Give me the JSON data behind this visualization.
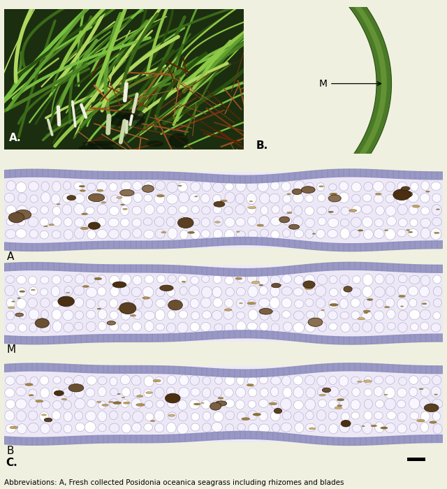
{
  "fig_width": 6.4,
  "fig_height": 7.0,
  "dpi": 100,
  "bg_color": "#f0f0e0",
  "panel_A_label": "A.",
  "panel_B_label": "B.",
  "panel_C_label": "C.",
  "label_fontsize": 11,
  "annotation_fontsize": 10,
  "caption_fontsize": 7.5,
  "leaf_dark": "#3a6020",
  "leaf_mid": "#5a8030",
  "leaf_light": "#7aaa40",
  "leaf_tip": "#a0cc60",
  "epi_color": "#9090c0",
  "cell_fill": "#f5f3fc",
  "cell_edge": "#a8a0c8",
  "vb_colors": [
    "#6a5030",
    "#7a6040",
    "#5a4020",
    "#8a7050",
    "#4a3010"
  ],
  "bg_strip": "#ede8f8"
}
